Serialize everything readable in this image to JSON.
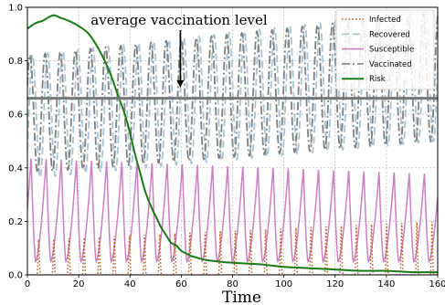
{
  "chart_data": {
    "type": "line",
    "title": "",
    "xlabel": "Time",
    "ylabel": "",
    "xlim": [
      0,
      160
    ],
    "ylim": [
      0,
      1.0
    ],
    "x_ticks": [
      0,
      20,
      40,
      60,
      80,
      100,
      120,
      140,
      160
    ],
    "y_ticks": [
      0.0,
      0.2,
      0.4,
      0.6,
      0.8,
      1.0
    ],
    "x_tick_labels": [
      "0",
      "20",
      "40",
      "60",
      "80",
      "100",
      "120",
      "140",
      "160"
    ],
    "y_tick_labels": [
      "0.0",
      "0.2",
      "0.4",
      "0.6",
      "0.8",
      "1.0"
    ],
    "grid": true,
    "legend_position": "top-right",
    "series": [
      {
        "name": "Infected",
        "color": "#c0652a",
        "style": "dotted",
        "oscillation": {
          "period": 5.9,
          "min": 0.0,
          "max_start": 0.13,
          "max_end": 0.2,
          "phase": 4.4
        }
      },
      {
        "name": "Recovered",
        "color": "#a9c3d3",
        "style": "dashed",
        "oscillation": {
          "period": 5.9,
          "min_start": 0.36,
          "min_end": 0.5,
          "max_start": 0.82,
          "max_end": 0.99,
          "phase": 2.0
        }
      },
      {
        "name": "Susceptible",
        "color": "#cc80c4",
        "style": "solid",
        "oscillation": {
          "period": 5.9,
          "min": 0.05,
          "max_start": 0.44,
          "max_end": 0.38,
          "phase": 3.2
        }
      },
      {
        "name": "Vaccinated",
        "color": "#7f7f7f",
        "style": "dashdot",
        "oscillation": {
          "period": 5.9,
          "min_start": 0.38,
          "min_end": 0.5,
          "max_start": 0.82,
          "max_end": 0.98,
          "phase": 1.0
        }
      },
      {
        "name": "Risk",
        "color": "#1a7a16",
        "style": "solid",
        "x": [
          0,
          3,
          6,
          10,
          13,
          16,
          20,
          24,
          28,
          32,
          35,
          38,
          40,
          42,
          44,
          46,
          48,
          50,
          52,
          54,
          56,
          58,
          60,
          62,
          64,
          66,
          70,
          80,
          90,
          100,
          110,
          120,
          130,
          140,
          150,
          155,
          160
        ],
        "y": [
          0.92,
          0.94,
          0.95,
          0.97,
          0.96,
          0.95,
          0.93,
          0.9,
          0.84,
          0.76,
          0.68,
          0.6,
          0.53,
          0.45,
          0.38,
          0.31,
          0.26,
          0.22,
          0.18,
          0.15,
          0.12,
          0.11,
          0.09,
          0.08,
          0.07,
          0.065,
          0.055,
          0.045,
          0.04,
          0.03,
          0.025,
          0.02,
          0.015,
          0.015,
          0.01,
          0.01,
          0.01
        ]
      }
    ],
    "reference_line": {
      "y": 0.66,
      "color": "#777777"
    },
    "annotation": {
      "text": "average vaccination level",
      "arrow_x": 60,
      "arrow_y_tip": 0.7
    }
  }
}
